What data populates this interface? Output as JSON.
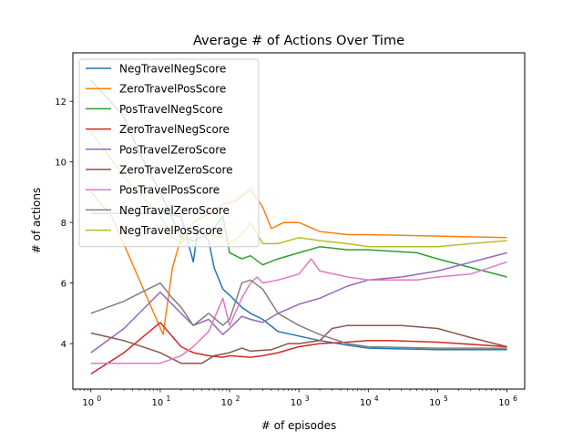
{
  "chart_data": {
    "type": "line",
    "title": "Average # of Actions Over Time",
    "xlabel": "# of episodes",
    "ylabel": "# of actions",
    "x_scale": "log",
    "xlim": [
      0.55,
      1800000
    ],
    "ylim": [
      2.5,
      13.6
    ],
    "x_ticks": [
      {
        "value": 1,
        "label": "10",
        "exp": "0"
      },
      {
        "value": 10,
        "label": "10",
        "exp": "1"
      },
      {
        "value": 100,
        "label": "10",
        "exp": "2"
      },
      {
        "value": 1000,
        "label": "10",
        "exp": "3"
      },
      {
        "value": 10000,
        "label": "10",
        "exp": "4"
      },
      {
        "value": 100000,
        "label": "10",
        "exp": "5"
      },
      {
        "value": 1000000,
        "label": "10",
        "exp": "6"
      }
    ],
    "y_ticks": [
      {
        "value": 4,
        "label": "4"
      },
      {
        "value": 6,
        "label": "6"
      },
      {
        "value": 8,
        "label": "8"
      },
      {
        "value": 10,
        "label": "10"
      },
      {
        "value": 12,
        "label": "12"
      }
    ],
    "grid": false,
    "legend_position": "top-left",
    "series": [
      {
        "name": "NegTravelNegScore",
        "color": "#1f77b4",
        "points": [
          [
            1,
            8.3
          ],
          [
            10,
            8.3
          ],
          [
            20,
            8.2
          ],
          [
            30,
            6.7
          ],
          [
            35,
            7.8
          ],
          [
            50,
            7.4
          ],
          [
            60,
            6.5
          ],
          [
            80,
            5.8
          ],
          [
            100,
            5.6
          ],
          [
            150,
            5.2
          ],
          [
            200,
            5.0
          ],
          [
            300,
            4.8
          ],
          [
            500,
            4.4
          ],
          [
            1000,
            4.25
          ],
          [
            2000,
            4.1
          ],
          [
            5000,
            3.95
          ],
          [
            10000,
            3.85
          ],
          [
            100000,
            3.8
          ],
          [
            1000000,
            3.8
          ]
        ]
      },
      {
        "name": "ZeroTravelPosScore",
        "color": "#ff7f0e",
        "points": [
          [
            1,
            9.0
          ],
          [
            2,
            8.2
          ],
          [
            11,
            4.3
          ],
          [
            15,
            6.5
          ],
          [
            20,
            7.5
          ],
          [
            30,
            8.0
          ],
          [
            50,
            8.3
          ],
          [
            80,
            8.6
          ],
          [
            120,
            8.7
          ],
          [
            200,
            9.1
          ],
          [
            300,
            8.5
          ],
          [
            400,
            7.8
          ],
          [
            600,
            8.0
          ],
          [
            1000,
            8.0
          ],
          [
            2000,
            7.7
          ],
          [
            5000,
            7.6
          ],
          [
            10000,
            7.6
          ],
          [
            100000,
            7.55
          ],
          [
            1000000,
            7.5
          ]
        ]
      },
      {
        "name": "PosTravelNegScore",
        "color": "#2ca02c",
        "points": [
          [
            1,
            12.7
          ],
          [
            3,
            11.5
          ],
          [
            5,
            10.3
          ],
          [
            10,
            9.0
          ],
          [
            20,
            7.5
          ],
          [
            30,
            7.4
          ],
          [
            50,
            7.6
          ],
          [
            80,
            8.2
          ],
          [
            100,
            7.0
          ],
          [
            150,
            6.8
          ],
          [
            200,
            6.9
          ],
          [
            300,
            6.6
          ],
          [
            500,
            6.8
          ],
          [
            1000,
            7.0
          ],
          [
            2000,
            7.2
          ],
          [
            5000,
            7.1
          ],
          [
            10000,
            7.1
          ],
          [
            50000,
            7.0
          ],
          [
            100000,
            6.8
          ],
          [
            1000000,
            6.2
          ]
        ]
      },
      {
        "name": "ZeroTravelNegScore",
        "color": "#d62728",
        "points": [
          [
            1,
            3.0
          ],
          [
            3,
            3.7
          ],
          [
            10,
            4.7
          ],
          [
            20,
            3.9
          ],
          [
            30,
            3.7
          ],
          [
            50,
            3.6
          ],
          [
            80,
            3.55
          ],
          [
            100,
            3.6
          ],
          [
            200,
            3.55
          ],
          [
            300,
            3.6
          ],
          [
            500,
            3.7
          ],
          [
            1000,
            3.9
          ],
          [
            2000,
            4.0
          ],
          [
            5000,
            4.05
          ],
          [
            10000,
            4.1
          ],
          [
            20000,
            4.1
          ],
          [
            100000,
            4.05
          ],
          [
            1000000,
            3.9
          ]
        ]
      },
      {
        "name": "PosTravelZeroScore",
        "color": "#9467bd",
        "points": [
          [
            1,
            3.7
          ],
          [
            3,
            4.5
          ],
          [
            10,
            5.7
          ],
          [
            20,
            5.0
          ],
          [
            30,
            4.6
          ],
          [
            50,
            4.8
          ],
          [
            80,
            4.3
          ],
          [
            100,
            4.5
          ],
          [
            150,
            4.9
          ],
          [
            200,
            4.8
          ],
          [
            300,
            4.7
          ],
          [
            500,
            5.0
          ],
          [
            1000,
            5.3
          ],
          [
            2000,
            5.5
          ],
          [
            5000,
            5.9
          ],
          [
            10000,
            6.1
          ],
          [
            30000,
            6.2
          ],
          [
            100000,
            6.4
          ],
          [
            1000000,
            7.0
          ]
        ]
      },
      {
        "name": "ZeroTravelZeroScore",
        "color": "#8c564b",
        "points": [
          [
            1,
            4.35
          ],
          [
            3,
            4.1
          ],
          [
            10,
            3.7
          ],
          [
            20,
            3.35
          ],
          [
            40,
            3.35
          ],
          [
            60,
            3.6
          ],
          [
            100,
            3.7
          ],
          [
            150,
            3.85
          ],
          [
            200,
            3.75
          ],
          [
            400,
            3.8
          ],
          [
            700,
            4.0
          ],
          [
            1000,
            4.0
          ],
          [
            2000,
            4.1
          ],
          [
            3000,
            4.5
          ],
          [
            5000,
            4.6
          ],
          [
            10000,
            4.6
          ],
          [
            30000,
            4.6
          ],
          [
            100000,
            4.5
          ],
          [
            300000,
            4.2
          ],
          [
            1000000,
            3.9
          ]
        ]
      },
      {
        "name": "PosTravelPosScore",
        "color": "#e377c2",
        "points": [
          [
            1,
            3.35
          ],
          [
            10,
            3.35
          ],
          [
            20,
            3.6
          ],
          [
            30,
            3.9
          ],
          [
            50,
            4.4
          ],
          [
            80,
            5.5
          ],
          [
            100,
            4.6
          ],
          [
            150,
            5.5
          ],
          [
            200,
            6.0
          ],
          [
            250,
            6.2
          ],
          [
            300,
            6.0
          ],
          [
            500,
            6.1
          ],
          [
            1000,
            6.3
          ],
          [
            1500,
            6.8
          ],
          [
            2000,
            6.4
          ],
          [
            5000,
            6.2
          ],
          [
            10000,
            6.1
          ],
          [
            50000,
            6.1
          ],
          [
            100000,
            6.2
          ],
          [
            300000,
            6.3
          ],
          [
            1000000,
            6.7
          ]
        ]
      },
      {
        "name": "NegTravelZeroScore",
        "color": "#7f7f7f",
        "points": [
          [
            1,
            5.0
          ],
          [
            3,
            5.4
          ],
          [
            10,
            6.0
          ],
          [
            15,
            5.5
          ],
          [
            20,
            5.2
          ],
          [
            30,
            4.6
          ],
          [
            50,
            5.0
          ],
          [
            80,
            4.6
          ],
          [
            100,
            4.8
          ],
          [
            150,
            6.0
          ],
          [
            200,
            6.1
          ],
          [
            300,
            5.8
          ],
          [
            500,
            5.0
          ],
          [
            1000,
            4.6
          ],
          [
            2000,
            4.3
          ],
          [
            5000,
            4.0
          ],
          [
            10000,
            3.9
          ],
          [
            100000,
            3.85
          ],
          [
            1000000,
            3.85
          ]
        ]
      },
      {
        "name": "NegTravelPosScore",
        "color": "#bcbd22",
        "points": [
          [
            1,
            11.0
          ],
          [
            3,
            9.5
          ],
          [
            10,
            8.2
          ],
          [
            15,
            7.5
          ],
          [
            20,
            7.3
          ],
          [
            30,
            7.8
          ],
          [
            50,
            7.6
          ],
          [
            80,
            7.5
          ],
          [
            100,
            7.3
          ],
          [
            150,
            7.6
          ],
          [
            200,
            8.0
          ],
          [
            300,
            7.3
          ],
          [
            500,
            7.3
          ],
          [
            1000,
            7.5
          ],
          [
            2000,
            7.4
          ],
          [
            5000,
            7.3
          ],
          [
            10000,
            7.2
          ],
          [
            100000,
            7.2
          ],
          [
            300000,
            7.3
          ],
          [
            1000000,
            7.4
          ]
        ]
      }
    ]
  }
}
